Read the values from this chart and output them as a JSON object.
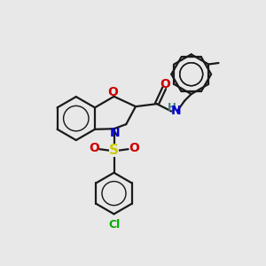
{
  "bg_color": "#e8e8e8",
  "bond_color": "#1a1a1a",
  "bond_width": 1.6,
  "fig_size": [
    3.0,
    3.0
  ],
  "dpi": 100,
  "colors": {
    "N": "#0000cc",
    "O": "#cc0000",
    "S": "#cccc00",
    "Cl": "#00aa00",
    "C": "#1a1a1a",
    "H": "#408080"
  },
  "font_size": 8.5
}
